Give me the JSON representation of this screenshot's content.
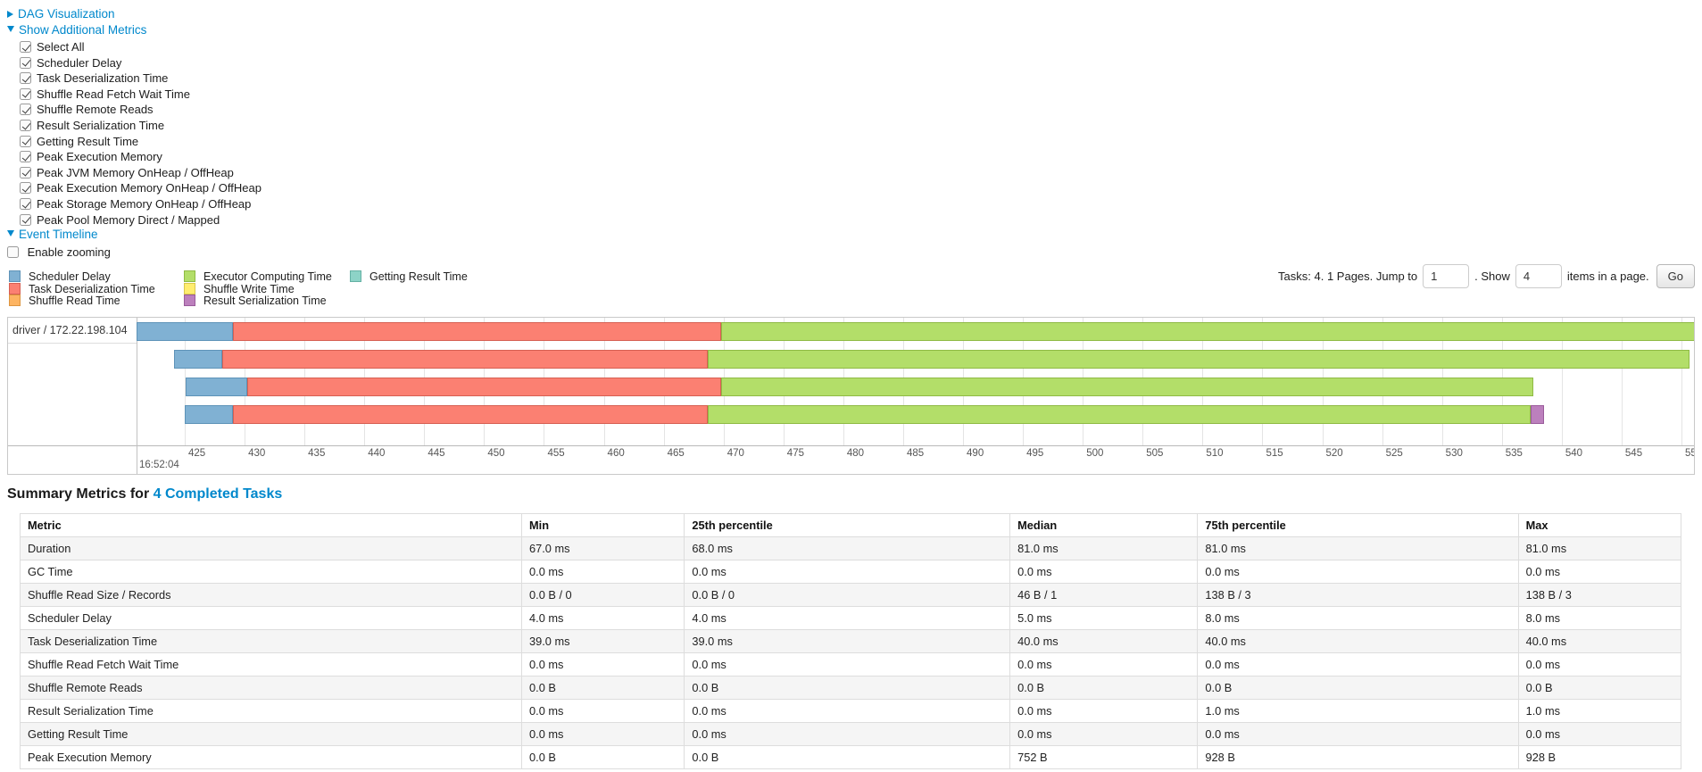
{
  "colors": {
    "link": "#0088cc"
  },
  "sections": {
    "dag": {
      "label": "DAG Visualization",
      "state": "collapsed"
    },
    "metrics": {
      "label": "Show Additional Metrics",
      "state": "expanded"
    },
    "timeline": {
      "label": "Event Timeline",
      "state": "expanded"
    }
  },
  "metric_checkboxes": [
    {
      "label": "Select All",
      "checked": true
    },
    {
      "label": "Scheduler Delay",
      "checked": true
    },
    {
      "label": "Task Deserialization Time",
      "checked": true
    },
    {
      "label": "Shuffle Read Fetch Wait Time",
      "checked": true
    },
    {
      "label": "Shuffle Remote Reads",
      "checked": true
    },
    {
      "label": "Result Serialization Time",
      "checked": true
    },
    {
      "label": "Getting Result Time",
      "checked": true
    },
    {
      "label": "Peak Execution Memory",
      "checked": true
    },
    {
      "label": "Peak JVM Memory OnHeap / OffHeap",
      "checked": true
    },
    {
      "label": "Peak Execution Memory OnHeap / OffHeap",
      "checked": true
    },
    {
      "label": "Peak Storage Memory OnHeap / OffHeap",
      "checked": true
    },
    {
      "label": "Peak Pool Memory Direct / Mapped",
      "checked": true
    }
  ],
  "enable_zooming": {
    "label": "Enable zooming",
    "checked": false
  },
  "legend": {
    "columns": [
      [
        {
          "label": "Scheduler Delay",
          "color": "#80B1D3",
          "border": "#5E93B8"
        },
        {
          "label": "Task Deserialization Time",
          "color": "#FB8072",
          "border": "#D65F52"
        },
        {
          "label": "Shuffle Read Time",
          "color": "#FDB462",
          "border": "#DC9540"
        }
      ],
      [
        {
          "label": "Executor Computing Time",
          "color": "#B3DE69",
          "border": "#8FBA44"
        },
        {
          "label": "Shuffle Write Time",
          "color": "#FFED6F",
          "border": "#D9C74D"
        },
        {
          "label": "Result Serialization Time",
          "color": "#BC80BD",
          "border": "#9A5B9B"
        }
      ],
      [
        {
          "label": "Getting Result Time",
          "color": "#8DD3C7",
          "border": "#64B1A4"
        }
      ]
    ]
  },
  "pagination": {
    "summary": "Tasks: 4. 1 Pages. Jump to",
    "jump_value": "1",
    "show_label": ". Show",
    "show_value": "4",
    "suffix": "items in a page.",
    "go": "Go"
  },
  "chart_data": {
    "type": "timeline",
    "group_label": "driver / 172.22.198.104",
    "time_label": "16:52:04",
    "axis": {
      "first_tick": 425,
      "step": 5,
      "tick_count": 26,
      "unit": "ms"
    },
    "segment_colors": {
      "scheduler-delay": {
        "fill": "#80B1D3",
        "stroke": "#5E93B8"
      },
      "task-deserialization": {
        "fill": "#FB8072",
        "stroke": "#D65F52"
      },
      "executor-computing": {
        "fill": "#B3DE69",
        "stroke": "#8FBA44"
      },
      "result-serialization": {
        "fill": "#BC80BD",
        "stroke": "#9A5B9B"
      }
    },
    "tasks": [
      {
        "segments": [
          {
            "type": "scheduler-delay",
            "from": 421.0,
            "to": 429.0
          },
          {
            "type": "task-deserialization",
            "from": 429.0,
            "to": 469.8
          },
          {
            "type": "executor-computing",
            "from": 469.8,
            "to": 551.5
          }
        ]
      },
      {
        "segments": [
          {
            "type": "scheduler-delay",
            "from": 424.1,
            "to": 428.1
          },
          {
            "type": "task-deserialization",
            "from": 428.1,
            "to": 468.7
          },
          {
            "type": "executor-computing",
            "from": 468.7,
            "to": 550.7
          }
        ]
      },
      {
        "segments": [
          {
            "type": "scheduler-delay",
            "from": 425.1,
            "to": 430.2
          },
          {
            "type": "task-deserialization",
            "from": 430.2,
            "to": 469.8
          },
          {
            "type": "executor-computing",
            "from": 469.8,
            "to": 537.6
          }
        ]
      },
      {
        "segments": [
          {
            "type": "scheduler-delay",
            "from": 425.0,
            "to": 429.0
          },
          {
            "type": "task-deserialization",
            "from": 429.0,
            "to": 468.7
          },
          {
            "type": "executor-computing",
            "from": 468.7,
            "to": 537.4
          },
          {
            "type": "result-serialization",
            "from": 537.4,
            "to": 538.5
          }
        ]
      }
    ]
  },
  "summary": {
    "heading": "Summary Metrics for ",
    "heading_link": "4 Completed Tasks",
    "columns": [
      "Metric",
      "Min",
      "25th percentile",
      "Median",
      "75th percentile",
      "Max"
    ],
    "col_widths": [
      "30.2%",
      "9.8%",
      "19.6%",
      "11.3%",
      "19.3%",
      "9.8%"
    ],
    "rows": [
      [
        "Duration",
        "67.0 ms",
        "68.0 ms",
        "81.0 ms",
        "81.0 ms",
        "81.0 ms"
      ],
      [
        "GC Time",
        "0.0 ms",
        "0.0 ms",
        "0.0 ms",
        "0.0 ms",
        "0.0 ms"
      ],
      [
        "Shuffle Read Size / Records",
        "0.0 B / 0",
        "0.0 B / 0",
        "46 B / 1",
        "138 B / 3",
        "138 B / 3"
      ],
      [
        "Scheduler Delay",
        "4.0 ms",
        "4.0 ms",
        "5.0 ms",
        "8.0 ms",
        "8.0 ms"
      ],
      [
        "Task Deserialization Time",
        "39.0 ms",
        "39.0 ms",
        "40.0 ms",
        "40.0 ms",
        "40.0 ms"
      ],
      [
        "Shuffle Read Fetch Wait Time",
        "0.0 ms",
        "0.0 ms",
        "0.0 ms",
        "0.0 ms",
        "0.0 ms"
      ],
      [
        "Shuffle Remote Reads",
        "0.0 B",
        "0.0 B",
        "0.0 B",
        "0.0 B",
        "0.0 B"
      ],
      [
        "Result Serialization Time",
        "0.0 ms",
        "0.0 ms",
        "0.0 ms",
        "1.0 ms",
        "1.0 ms"
      ],
      [
        "Getting Result Time",
        "0.0 ms",
        "0.0 ms",
        "0.0 ms",
        "0.0 ms",
        "0.0 ms"
      ],
      [
        "Peak Execution Memory",
        "0.0 B",
        "0.0 B",
        "752 B",
        "928 B",
        "928 B"
      ]
    ]
  }
}
